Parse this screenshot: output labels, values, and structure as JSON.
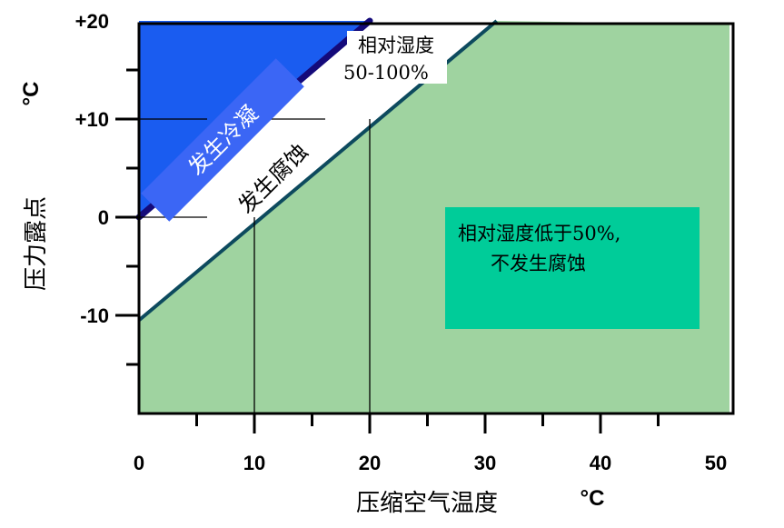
{
  "chart_data": {
    "type": "area",
    "xlabel": "压缩空气温度",
    "ylabel": "压力露点",
    "x_unit": "°C",
    "y_unit": "°C",
    "xlim": [
      0,
      50
    ],
    "ylim": [
      -20,
      20
    ],
    "x_ticks": [
      {
        "value": 0,
        "label": "0"
      },
      {
        "value": 10,
        "label": "10"
      },
      {
        "value": 20,
        "label": "20"
      },
      {
        "value": 30,
        "label": "30"
      },
      {
        "value": 40,
        "label": "40"
      },
      {
        "value": 50,
        "label": "50"
      }
    ],
    "x_minor_ticks": [
      5,
      15,
      25,
      35,
      45
    ],
    "y_ticks": [
      {
        "value": 20,
        "label": "+20"
      },
      {
        "value": 10,
        "label": "+10"
      },
      {
        "value": 0,
        "label": "0"
      },
      {
        "value": -10,
        "label": "-10"
      }
    ],
    "y_minor_ticks": [
      15,
      5,
      -5,
      -15
    ],
    "lines": [
      {
        "role": "dew-point-equals-temperature",
        "points": [
          [
            0,
            0
          ],
          [
            20,
            20
          ]
        ],
        "color": "#140a7a"
      },
      {
        "role": "relative-humidity-50",
        "points": [
          [
            0,
            -10.5
          ],
          [
            31,
            20
          ]
        ],
        "color": "#0d4a5e"
      }
    ],
    "guides": [
      {
        "x": 10,
        "y": 0
      },
      {
        "x": 20,
        "y": 10
      }
    ],
    "regions": [
      {
        "label": "发生冷凝",
        "color": "#1a5cf0"
      },
      {
        "label": "发生腐蚀",
        "color": "#ffffff"
      },
      {
        "label": "",
        "color": "#9fd3a0"
      }
    ],
    "annotations": {
      "condensation": "发生冷凝",
      "corrosion": "发生腐蚀",
      "humidity_range_line1": "相对湿度",
      "humidity_range_line2": "50-100%",
      "no_corrosion_line1": "相对湿度低于50%,",
      "no_corrosion_line2": "不发生腐蚀"
    },
    "colors": {
      "condensation": "#1a5cf0",
      "no_corrosion_zone": "#9fd3a0",
      "note_box": "#00cc99",
      "dew_line": "#140a7a",
      "rh50_line": "#0d4a5e"
    }
  }
}
